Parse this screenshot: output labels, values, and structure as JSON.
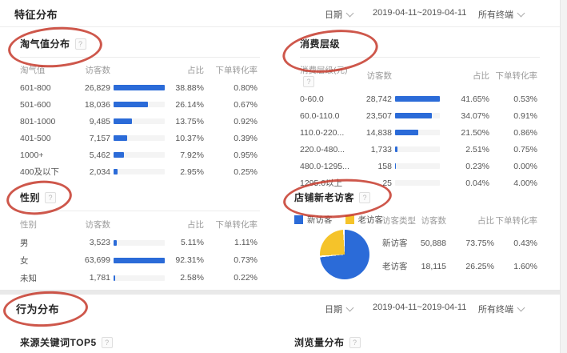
{
  "icons": {
    "help_glyph": "?"
  },
  "colors": {
    "bar_blue": "#2b6bd8",
    "pie_yellow": "#f5c32a",
    "annotation_red": "#c6392c",
    "track_gray": "#f4f4f4"
  },
  "feature_header": {
    "title": "特征分布",
    "date_label": "日期",
    "date_range": "2019-04-11~2019-04-11",
    "terminal_label": "所有终端"
  },
  "behavior_header": {
    "title": "行为分布",
    "date_label": "日期",
    "date_range": "2019-04-11~2019-04-11",
    "terminal_label": "所有终端"
  },
  "panels": {
    "taoqi": {
      "title": "淘气值分布",
      "columns": [
        "淘气值",
        "访客数",
        "占比",
        "下单转化率"
      ],
      "rows": [
        {
          "label": "601-800",
          "visitors": "26,829",
          "share": "38.88%",
          "conversion": "0.80%"
        },
        {
          "label": "501-600",
          "visitors": "18,036",
          "share": "26.14%",
          "conversion": "0.67%"
        },
        {
          "label": "801-1000",
          "visitors": "9,485",
          "share": "13.75%",
          "conversion": "0.92%"
        },
        {
          "label": "401-500",
          "visitors": "7,157",
          "share": "10.37%",
          "conversion": "0.39%"
        },
        {
          "label": "1000+",
          "visitors": "5,462",
          "share": "7.92%",
          "conversion": "0.95%"
        },
        {
          "label": "400及以下",
          "visitors": "2,034",
          "share": "2.95%",
          "conversion": "0.25%"
        }
      ]
    },
    "consumption": {
      "title": "消费层级",
      "header_help": true,
      "columns": [
        "消费层级(元)",
        "访客数",
        "占比",
        "下单转化率"
      ],
      "rows": [
        {
          "label": "0-60.0",
          "visitors": "28,742",
          "share": "41.65%",
          "conversion": "0.53%"
        },
        {
          "label": "60.0-110.0",
          "visitors": "23,507",
          "share": "34.07%",
          "conversion": "0.91%"
        },
        {
          "label": "110.0-220...",
          "visitors": "14,838",
          "share": "21.50%",
          "conversion": "0.86%"
        },
        {
          "label": "220.0-480...",
          "visitors": "1,733",
          "share": "2.51%",
          "conversion": "0.75%"
        },
        {
          "label": "480.0-1295...",
          "visitors": "158",
          "share": "0.23%",
          "conversion": "0.00%"
        },
        {
          "label": "1295.0以上",
          "visitors": "25",
          "share": "0.04%",
          "conversion": "4.00%"
        }
      ]
    },
    "gender": {
      "title": "性别",
      "columns": [
        "性别",
        "访客数",
        "占比",
        "下单转化率"
      ],
      "rows": [
        {
          "label": "男",
          "visitors": "3,523",
          "share": "5.11%",
          "conversion": "1.11%"
        },
        {
          "label": "女",
          "visitors": "63,699",
          "share": "92.31%",
          "conversion": "0.73%"
        },
        {
          "label": "未知",
          "visitors": "1,781",
          "share": "2.58%",
          "conversion": "0.22%"
        }
      ]
    },
    "visitor_type": {
      "title": "店铺新老访客",
      "columns": [
        "访客类型",
        "访客数",
        "占比",
        "下单转化率"
      ],
      "legend": [
        {
          "label": "新访客",
          "color": "#2b6bd8"
        },
        {
          "label": "老访客",
          "color": "#f5c32a"
        }
      ],
      "rows": [
        {
          "label": "新访客",
          "visitors": "50,888",
          "share": "73.75%",
          "conversion": "0.43%"
        },
        {
          "label": "老访客",
          "visitors": "18,115",
          "share": "26.25%",
          "conversion": "1.60%"
        }
      ]
    },
    "keywords": {
      "title": "来源关键词TOP5"
    },
    "pageviews": {
      "title": "浏览量分布"
    }
  },
  "chart_data": [
    {
      "type": "bar",
      "title": "淘气值分布",
      "categories": [
        "601-800",
        "501-600",
        "801-1000",
        "401-500",
        "1000+",
        "400及以下"
      ],
      "values": [
        26829,
        18036,
        9485,
        7157,
        5462,
        2034
      ],
      "shares_pct": [
        38.88,
        26.14,
        13.75,
        10.37,
        7.92,
        2.95
      ],
      "conversion_pct": [
        0.8,
        0.67,
        0.92,
        0.39,
        0.95,
        0.25
      ],
      "ylabel": "访客数"
    },
    {
      "type": "bar",
      "title": "消费层级",
      "categories": [
        "0-60.0",
        "60.0-110.0",
        "110.0-220...",
        "220.0-480...",
        "480.0-1295...",
        "1295.0以上"
      ],
      "values": [
        28742,
        23507,
        14838,
        1733,
        158,
        25
      ],
      "shares_pct": [
        41.65,
        34.07,
        21.5,
        2.51,
        0.23,
        0.04
      ],
      "conversion_pct": [
        0.53,
        0.91,
        0.86,
        0.75,
        0.0,
        4.0
      ],
      "ylabel": "访客数"
    },
    {
      "type": "bar",
      "title": "性别",
      "categories": [
        "男",
        "女",
        "未知"
      ],
      "values": [
        3523,
        63699,
        1781
      ],
      "shares_pct": [
        5.11,
        92.31,
        2.58
      ],
      "conversion_pct": [
        1.11,
        0.73,
        0.22
      ],
      "ylabel": "访客数"
    },
    {
      "type": "pie",
      "title": "店铺新老访客",
      "labels": [
        "新访客",
        "老访客"
      ],
      "values": [
        73.75,
        26.25
      ],
      "counts": [
        50888,
        18115
      ],
      "colors": [
        "#2b6bd8",
        "#f5c32a"
      ],
      "legend_position": "top-left"
    }
  ]
}
